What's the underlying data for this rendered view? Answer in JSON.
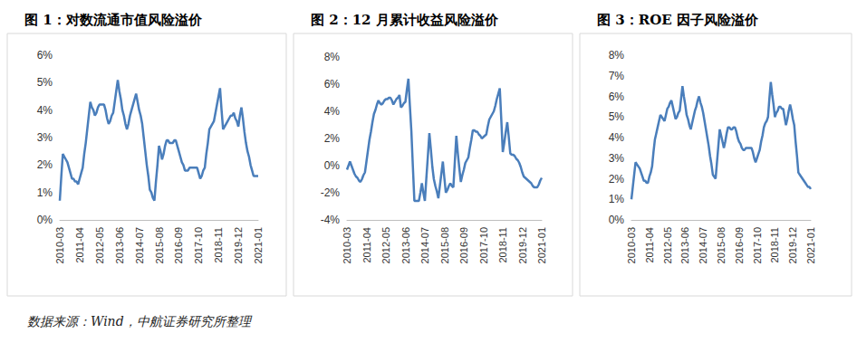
{
  "source": "数据来源：Wind，中航证券研究所整理",
  "chart_data": [
    {
      "type": "line",
      "title": "图 1：对数流通市值风险溢价",
      "categories": [
        "2010-03",
        null,
        null,
        null,
        null,
        null,
        null,
        null,
        null,
        null,
        null,
        null,
        null,
        "2011-04",
        null,
        null,
        null,
        null,
        null,
        null,
        null,
        null,
        null,
        null,
        null,
        null,
        "2012-05",
        null,
        null,
        null,
        null,
        null,
        null,
        null,
        null,
        null,
        null,
        null,
        null,
        "2013-06",
        null,
        null,
        null,
        null,
        null,
        null,
        null,
        null,
        null,
        null,
        null,
        null,
        "2014-07",
        null,
        null,
        null,
        null,
        null,
        null,
        null,
        null,
        null,
        null,
        null,
        null,
        "2015-08",
        null,
        null,
        null,
        null,
        null,
        null,
        null,
        null,
        null,
        null,
        null,
        null,
        "2016-09",
        null,
        null,
        null,
        null,
        null,
        null,
        null,
        null,
        null,
        null,
        null,
        null,
        "2017-10",
        null,
        null,
        null,
        null,
        null,
        null,
        null,
        null,
        null,
        null,
        null,
        null,
        "2018-11",
        null,
        null,
        null,
        null,
        null,
        null,
        null,
        null,
        null,
        null,
        null,
        null,
        "2019-12",
        null,
        null,
        null,
        null,
        null,
        null,
        null,
        null,
        null,
        null,
        null,
        null,
        "2021-01"
      ],
      "values": [
        0.7,
        1.6,
        2.4,
        2.3,
        2.2,
        2.1,
        1.9,
        1.7,
        1.5,
        1.5,
        1.4,
        1.4,
        1.3,
        1.5,
        1.7,
        1.9,
        2.4,
        2.8,
        3.3,
        3.8,
        4.3,
        4.1,
        4.0,
        3.8,
        3.9,
        4.1,
        4.2,
        4.2,
        4.2,
        4.2,
        4.0,
        3.7,
        3.5,
        3.6,
        3.8,
        3.9,
        4.3,
        4.7,
        5.1,
        4.7,
        4.4,
        4.0,
        3.8,
        3.5,
        3.3,
        3.5,
        3.8,
        4.0,
        4.2,
        4.4,
        4.6,
        4.3,
        4.0,
        3.8,
        3.5,
        3.0,
        2.5,
        2.0,
        1.6,
        1.1,
        1.0,
        0.8,
        0.7,
        1.4,
        2.0,
        2.7,
        2.5,
        2.2,
        2.4,
        2.7,
        2.9,
        2.9,
        2.8,
        2.8,
        2.8,
        2.9,
        2.9,
        2.7,
        2.5,
        2.3,
        2.1,
        2.0,
        1.8,
        1.8,
        1.8,
        1.9,
        1.9,
        1.9,
        1.9,
        1.9,
        1.9,
        1.7,
        1.5,
        1.6,
        1.8,
        1.9,
        2.4,
        2.8,
        3.3,
        3.4,
        3.5,
        3.6,
        3.9,
        4.2,
        4.5,
        4.8,
        4.0,
        3.3,
        3.4,
        3.5,
        3.6,
        3.7,
        3.8,
        3.8,
        3.9,
        3.7,
        3.6,
        3.4,
        3.8,
        4.1,
        3.7,
        3.2,
        2.8,
        2.5,
        2.3,
        2.0,
        1.8,
        1.6,
        1.6,
        1.6,
        1.6
      ],
      "color": "#4a7ebb",
      "ylim": [
        0,
        6
      ],
      "yticks": [
        {
          "value": 0,
          "label": "0%"
        },
        {
          "value": 1,
          "label": "1%"
        },
        {
          "value": 2,
          "label": "2%"
        },
        {
          "value": 3,
          "label": "3%"
        },
        {
          "value": 4,
          "label": "4%"
        },
        {
          "value": 5,
          "label": "5%"
        },
        {
          "value": 6,
          "label": "6%"
        }
      ],
      "grid": false
    },
    {
      "type": "line",
      "title": "图 2：12 月累计收益风险溢价",
      "categories": [
        "2010-03",
        null,
        null,
        null,
        null,
        null,
        null,
        null,
        null,
        null,
        null,
        null,
        null,
        "2011-04",
        null,
        null,
        null,
        null,
        null,
        null,
        null,
        null,
        null,
        null,
        null,
        null,
        "2012-05",
        null,
        null,
        null,
        null,
        null,
        null,
        null,
        null,
        null,
        null,
        null,
        null,
        "2013-06",
        null,
        null,
        null,
        null,
        null,
        null,
        null,
        null,
        null,
        null,
        null,
        null,
        "2014-07",
        null,
        null,
        null,
        null,
        null,
        null,
        null,
        null,
        null,
        null,
        null,
        null,
        "2015-08",
        null,
        null,
        null,
        null,
        null,
        null,
        null,
        null,
        null,
        null,
        null,
        null,
        "2016-09",
        null,
        null,
        null,
        null,
        null,
        null,
        null,
        null,
        null,
        null,
        null,
        null,
        "2017-10",
        null,
        null,
        null,
        null,
        null,
        null,
        null,
        null,
        null,
        null,
        null,
        null,
        "2018-11",
        null,
        null,
        null,
        null,
        null,
        null,
        null,
        null,
        null,
        null,
        null,
        null,
        "2019-12",
        null,
        null,
        null,
        null,
        null,
        null,
        null,
        null,
        null,
        null,
        null,
        null,
        "2021-01"
      ],
      "values": [
        -0.3,
        0.0,
        0.3,
        0.0,
        -0.3,
        -0.6,
        -0.8,
        -0.9,
        -1.1,
        -1.2,
        -1.0,
        -0.7,
        -0.5,
        0.3,
        1.1,
        1.9,
        2.5,
        3.2,
        3.8,
        4.1,
        4.5,
        4.8,
        4.6,
        4.5,
        4.6,
        4.8,
        4.9,
        4.9,
        5.0,
        5.0,
        4.8,
        4.5,
        4.7,
        4.9,
        5.0,
        5.2,
        4.3,
        4.4,
        4.6,
        4.7,
        5.6,
        6.4,
        4.4,
        2.5,
        -0.1,
        -2.6,
        -2.6,
        -2.6,
        -2.6,
        -2.0,
        -1.3,
        -2.0,
        -2.6,
        -0.9,
        0.7,
        2.4,
        1.2,
        -0.1,
        -1.0,
        -1.5,
        -1.9,
        -2.4,
        -1.5,
        -0.6,
        0.3,
        -0.9,
        -2.0,
        -1.8,
        -1.5,
        -1.3,
        -1.5,
        -1.6,
        0.3,
        2.2,
        0.9,
        -0.2,
        -1.2,
        -0.7,
        -0.3,
        0.2,
        0.4,
        0.6,
        1.3,
        1.9,
        2.6,
        2.6,
        2.5,
        2.5,
        2.3,
        2.2,
        2.0,
        2.1,
        2.2,
        2.3,
        2.9,
        3.4,
        3.6,
        3.8,
        4.0,
        4.4,
        4.9,
        5.3,
        5.7,
        3.4,
        1.0,
        1.7,
        2.5,
        3.2,
        2.1,
        0.9,
        0.8,
        0.8,
        0.7,
        0.5,
        0.4,
        0.2,
        -0.1,
        -0.5,
        -0.8,
        -0.9,
        -1.0,
        -1.1,
        -1.2,
        -1.3,
        -1.5,
        -1.6,
        -1.6,
        -1.6,
        -1.4,
        -1.1,
        -0.9
      ],
      "color": "#4a7ebb",
      "ylim": [
        -4,
        8
      ],
      "yticks": [
        {
          "value": -4,
          "label": "-4%"
        },
        {
          "value": -2,
          "label": "-2%"
        },
        {
          "value": 0,
          "label": "0%"
        },
        {
          "value": 2,
          "label": "2%"
        },
        {
          "value": 4,
          "label": "4%"
        },
        {
          "value": 6,
          "label": "6%"
        },
        {
          "value": 8,
          "label": "8%"
        }
      ],
      "grid": false
    },
    {
      "type": "line",
      "title": "图 3：ROE 因子风险溢价",
      "categories": [
        "2010-03",
        null,
        null,
        null,
        null,
        null,
        null,
        null,
        null,
        null,
        null,
        null,
        null,
        "2011-04",
        null,
        null,
        null,
        null,
        null,
        null,
        null,
        null,
        null,
        null,
        null,
        null,
        "2012-05",
        null,
        null,
        null,
        null,
        null,
        null,
        null,
        null,
        null,
        null,
        null,
        null,
        "2013-06",
        null,
        null,
        null,
        null,
        null,
        null,
        null,
        null,
        null,
        null,
        null,
        null,
        "2014-07",
        null,
        null,
        null,
        null,
        null,
        null,
        null,
        null,
        null,
        null,
        null,
        null,
        "2015-08",
        null,
        null,
        null,
        null,
        null,
        null,
        null,
        null,
        null,
        null,
        null,
        null,
        "2016-09",
        null,
        null,
        null,
        null,
        null,
        null,
        null,
        null,
        null,
        null,
        null,
        null,
        "2017-10",
        null,
        null,
        null,
        null,
        null,
        null,
        null,
        null,
        null,
        null,
        null,
        null,
        "2018-11",
        null,
        null,
        null,
        null,
        null,
        null,
        null,
        null,
        null,
        null,
        null,
        null,
        "2019-12",
        null,
        null,
        null,
        null,
        null,
        null,
        null,
        null,
        null,
        null,
        null,
        null,
        "2021-01"
      ],
      "values": [
        1.0,
        1.6,
        2.2,
        2.8,
        2.7,
        2.6,
        2.5,
        2.3,
        2.1,
        1.9,
        1.9,
        1.8,
        1.8,
        2.1,
        2.3,
        2.6,
        3.3,
        3.9,
        4.2,
        4.5,
        4.8,
        5.1,
        5.0,
        4.9,
        4.8,
        5.1,
        5.4,
        5.5,
        5.7,
        5.8,
        5.5,
        5.2,
        4.9,
        5.0,
        5.2,
        5.3,
        5.9,
        6.5,
        6.0,
        5.6,
        5.1,
        4.9,
        4.6,
        4.4,
        4.7,
        5.0,
        5.3,
        5.5,
        5.8,
        6.0,
        5.7,
        5.5,
        5.2,
        4.8,
        4.4,
        4.0,
        3.6,
        3.1,
        2.7,
        2.2,
        2.1,
        2.0,
        2.8,
        3.6,
        4.4,
        4.1,
        3.8,
        3.5,
        3.8,
        4.2,
        4.5,
        4.5,
        4.4,
        4.4,
        4.5,
        4.5,
        4.3,
        4.0,
        3.8,
        3.7,
        3.5,
        3.4,
        3.4,
        3.5,
        3.5,
        3.5,
        3.5,
        3.5,
        3.3,
        3.0,
        2.8,
        3.0,
        3.2,
        3.4,
        3.8,
        4.1,
        4.5,
        4.7,
        4.8,
        5.0,
        5.9,
        6.7,
        6.1,
        5.6,
        5.0,
        5.2,
        5.3,
        5.5,
        5.5,
        5.4,
        5.4,
        5.0,
        4.6,
        4.9,
        5.3,
        5.6,
        5.3,
        4.9,
        4.6,
        3.8,
        3.1,
        2.3,
        2.2,
        2.1,
        2.0,
        1.9,
        1.8,
        1.7,
        1.6,
        1.6,
        1.5
      ],
      "color": "#4a7ebb",
      "ylim": [
        0,
        8
      ],
      "yticks": [
        {
          "value": 0,
          "label": "0%"
        },
        {
          "value": 1,
          "label": "1%"
        },
        {
          "value": 2,
          "label": "2%"
        },
        {
          "value": 3,
          "label": "3%"
        },
        {
          "value": 4,
          "label": "4%"
        },
        {
          "value": 5,
          "label": "5%"
        },
        {
          "value": 6,
          "label": "6%"
        },
        {
          "value": 7,
          "label": "7%"
        },
        {
          "value": 8,
          "label": "8%"
        }
      ],
      "grid": false
    }
  ]
}
